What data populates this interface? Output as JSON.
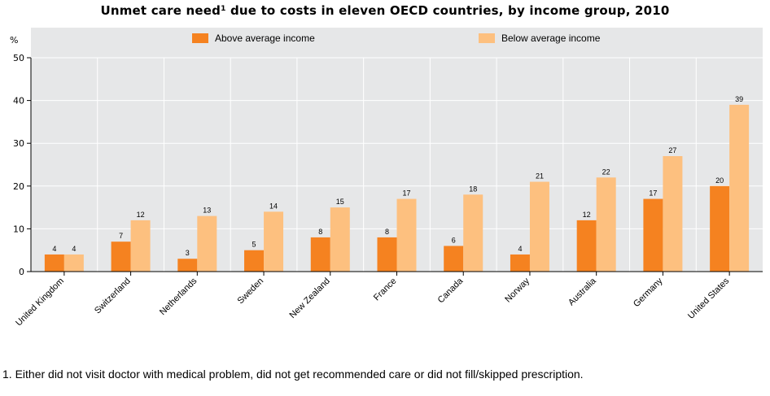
{
  "chart_data": {
    "type": "bar",
    "title": "Unmet care need",
    "title_sup": "1",
    "title_rest": " due to costs in eleven OECD countries, by income group, 2010",
    "ylabel": "%",
    "ylim": [
      0,
      50
    ],
    "yticks": [
      "0",
      "10",
      "20",
      "30",
      "40",
      "50"
    ],
    "grid": true,
    "legend_position": "top",
    "categories": [
      "United Kingdom",
      "Switzerland",
      "Netherlands",
      "Sweden",
      "New Zealand",
      "France",
      "Canada",
      "Norway",
      "Australia",
      "Germany",
      "United States"
    ],
    "series": [
      {
        "name": "Above average income",
        "color": "#f58220",
        "values": [
          4,
          7,
          3,
          5,
          8,
          8,
          6,
          4,
          12,
          17,
          20
        ]
      },
      {
        "name": "Below average income",
        "color": "#fdc07f",
        "values": [
          4,
          12,
          13,
          14,
          15,
          17,
          18,
          21,
          22,
          27,
          39
        ]
      }
    ],
    "footnote": "1. Either did not visit doctor with medical problem, did not get recommended care or did not fill/skipped prescription."
  }
}
